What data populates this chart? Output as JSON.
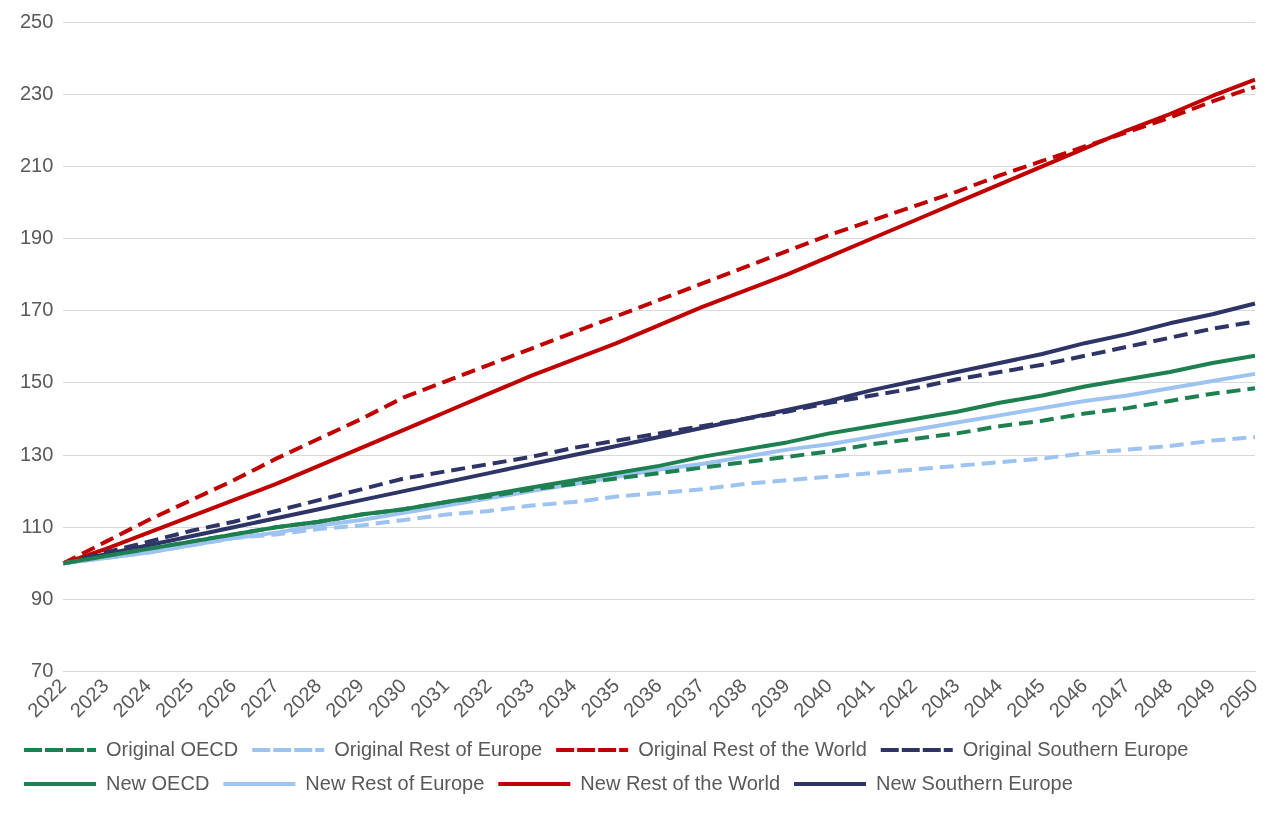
{
  "chart_data": {
    "type": "line",
    "categories": [
      "2022",
      "2023",
      "2024",
      "2025",
      "2026",
      "2027",
      "2028",
      "2029",
      "2030",
      "2031",
      "2032",
      "2033",
      "2034",
      "2035",
      "2036",
      "2037",
      "2038",
      "2039",
      "2040",
      "2041",
      "2042",
      "2043",
      "2044",
      "2045",
      "2046",
      "2047",
      "2048",
      "2049",
      "2050"
    ],
    "ylim": [
      70,
      250
    ],
    "yticks": [
      70,
      90,
      110,
      130,
      150,
      170,
      190,
      210,
      230,
      250
    ],
    "grid": "y",
    "legend": "bottom",
    "marker": "none",
    "series": [
      {
        "name": "Original OECD",
        "color": "#1e8050",
        "line_style": "dashed",
        "values": [
          100,
          102,
          104,
          106,
          108,
          110,
          111.5,
          113.5,
          115,
          117,
          118.5,
          120.5,
          122,
          123.5,
          125,
          126.5,
          128,
          129.5,
          131,
          133,
          134.5,
          136,
          138,
          139.5,
          141.5,
          143,
          145,
          147,
          148.5
        ]
      },
      {
        "name": "Original Rest of Europe",
        "color": "#9dc3f0",
        "line_style": "dashed",
        "values": [
          100,
          101.5,
          103,
          105,
          107,
          108,
          109.5,
          110.5,
          112,
          113.5,
          114.5,
          116,
          117,
          118.5,
          119.5,
          120.5,
          122,
          123,
          124,
          125,
          126,
          127,
          128,
          129,
          130.5,
          131.5,
          132.5,
          134,
          135
        ]
      },
      {
        "name": "Original Rest of the World",
        "color": "#c00000",
        "line_style": "dashed",
        "values": [
          100,
          106,
          112,
          117.5,
          123,
          129,
          134.5,
          140,
          146,
          150.5,
          155,
          159.5,
          164,
          168.5,
          173,
          177.5,
          182,
          186.5,
          191,
          195,
          199,
          203,
          207.5,
          211.5,
          215.5,
          219.5,
          223.5,
          228,
          232
        ]
      },
      {
        "name": "Original Southern Europe",
        "color": "#2e3466",
        "line_style": "dashed",
        "values": [
          100,
          103,
          106,
          109,
          111.5,
          114.5,
          117.5,
          120.5,
          123.5,
          125.5,
          127.5,
          129.5,
          132,
          134,
          136,
          138,
          140,
          142,
          144.5,
          146.5,
          148.5,
          151,
          153,
          155,
          157.5,
          160,
          162.5,
          165,
          167
        ]
      },
      {
        "name": "New OECD",
        "color": "#1e8050",
        "line_style": "solid",
        "values": [
          100,
          102,
          104,
          106,
          108,
          110,
          111.5,
          113.5,
          115,
          117,
          119,
          121,
          123,
          125,
          127,
          129.5,
          131.5,
          133.5,
          136,
          138,
          140,
          142,
          144.5,
          146.5,
          149,
          151,
          153,
          155.5,
          157.5
        ]
      },
      {
        "name": "New Rest of Europe",
        "color": "#9dc3f0",
        "line_style": "solid",
        "values": [
          100,
          101.5,
          103,
          105,
          107,
          108.5,
          110.5,
          112,
          114,
          116,
          118,
          120,
          122,
          124,
          126,
          127.5,
          129.5,
          131.5,
          133,
          135,
          137,
          139,
          141,
          143,
          145,
          146.5,
          148.5,
          150.5,
          152.5
        ]
      },
      {
        "name": "New Rest of the World",
        "color": "#c00000",
        "line_style": "solid",
        "values": [
          100,
          104,
          108.5,
          113,
          117.5,
          122,
          127,
          132,
          137,
          142,
          147,
          152,
          156.5,
          161,
          166,
          171,
          175.5,
          180,
          185,
          190,
          195,
          200,
          205,
          210,
          215,
          220,
          224.5,
          229.5,
          234
        ]
      },
      {
        "name": "New Southern Europe",
        "color": "#2e3466",
        "line_style": "solid",
        "values": [
          100,
          102.5,
          105,
          107.5,
          110,
          112.5,
          115,
          117.5,
          120,
          122.5,
          125,
          127.5,
          130,
          132.5,
          135,
          137.5,
          140,
          142.5,
          145,
          148,
          150.5,
          153,
          155.5,
          158,
          161,
          163.5,
          166.5,
          169,
          172
        ]
      }
    ]
  }
}
